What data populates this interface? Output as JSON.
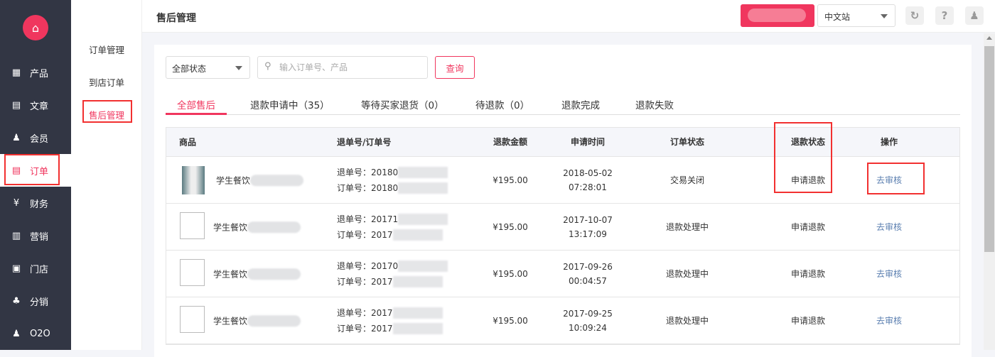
{
  "sidebar": {
    "items": [
      {
        "label": "产品",
        "icon": "grid-icon"
      },
      {
        "label": "文章",
        "icon": "document-icon"
      },
      {
        "label": "会员",
        "icon": "member-icon"
      },
      {
        "label": "订单",
        "icon": "order-icon"
      },
      {
        "label": "财务",
        "icon": "yen-icon"
      },
      {
        "label": "营销",
        "icon": "gift-icon"
      },
      {
        "label": "门店",
        "icon": "store-icon"
      },
      {
        "label": "分销",
        "icon": "network-icon"
      },
      {
        "label": "O2O",
        "icon": "o2o-icon"
      }
    ],
    "active": "订单"
  },
  "submenu": {
    "items": [
      "订单管理",
      "到店订单",
      "售后管理"
    ],
    "active": "售后管理"
  },
  "header": {
    "title": "售后管理",
    "site_select": "中文站"
  },
  "filters": {
    "status_select": "全部状态",
    "search_placeholder": "输入订单号、产品",
    "query_button": "查询"
  },
  "tabs": [
    "全部售后",
    "退款申请中（35）",
    "等待买家退货（0）",
    "待退款（0）",
    "退款完成",
    "退款失败"
  ],
  "table": {
    "headers": [
      "商品",
      "退单号/订单号",
      "退款金额",
      "申请时间",
      "订单状态",
      "退款状态",
      "操作"
    ],
    "rows": [
      {
        "product": "学生餐饮",
        "refund_no": "退单号：20180",
        "order_no": "订单号：20180",
        "amount": "¥195.00",
        "date": "2018-05-02",
        "time": "07:28:01",
        "order_status": "交易关闭",
        "refund_status": "申请退款",
        "action": "去审核"
      },
      {
        "product": "学生餐饮",
        "refund_no": "退单号：20171",
        "order_no": "订单号：2017",
        "amount": "¥195.00",
        "date": "2017-10-07",
        "time": "13:17:09",
        "order_status": "退款处理中",
        "refund_status": "申请退款",
        "action": "去审核"
      },
      {
        "product": "学生餐饮",
        "refund_no": "退单号：20170",
        "order_no": "订单号：2017",
        "amount": "¥195.00",
        "date": "2017-09-26",
        "time": "00:04:57",
        "order_status": "退款处理中",
        "refund_status": "申请退款",
        "action": "去审核"
      },
      {
        "product": "学生餐饮",
        "refund_no": "退单号：2017",
        "order_no": "订单号：2017",
        "amount": "¥195.00",
        "date": "2017-09-25",
        "time": "10:09:24",
        "order_status": "退款处理中",
        "refund_status": "申请退款",
        "action": "去审核"
      }
    ]
  },
  "colors": {
    "accent": "#f0365e",
    "sidebar": "#323644",
    "highlight": "#f23030",
    "link": "#5b7fb0"
  }
}
